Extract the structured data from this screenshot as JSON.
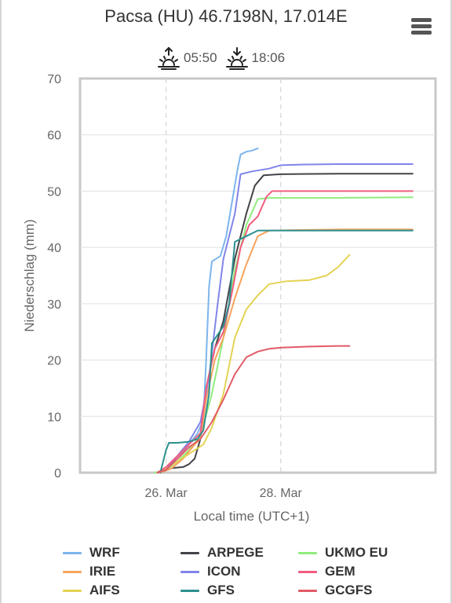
{
  "title": "Pacsa (HU) 46.7198N, 17.014E",
  "menu_icon": "hamburger-menu-icon",
  "sun": {
    "sunrise": "05:50",
    "sunset": "18:06",
    "sunrise_icon": "sunrise-icon",
    "sunset_icon": "sunset-icon"
  },
  "chart_data": {
    "type": "line",
    "xlabel": "Local time (UTC+1)",
    "ylabel": "Niederschlag (mm)",
    "ylim": [
      0,
      70
    ],
    "yticks": [
      0,
      10,
      20,
      30,
      40,
      50,
      60,
      70
    ],
    "xlim": [
      24.5,
      30.7
    ],
    "xticks": [
      {
        "x": 26,
        "label": "26. Mar"
      },
      {
        "x": 28,
        "label": "28. Mar"
      }
    ],
    "grid": true,
    "legend_position": "bottom",
    "series": [
      {
        "name": "WRF",
        "color": "#7cb5ec",
        "points": [
          [
            25.9,
            0
          ],
          [
            26.0,
            0.8
          ],
          [
            26.2,
            2.5
          ],
          [
            26.4,
            5
          ],
          [
            26.55,
            7
          ],
          [
            26.65,
            9.5
          ],
          [
            26.7,
            20
          ],
          [
            26.75,
            33
          ],
          [
            26.8,
            37.5
          ],
          [
            26.95,
            38.5
          ],
          [
            27.05,
            42
          ],
          [
            27.15,
            48
          ],
          [
            27.25,
            54
          ],
          [
            27.3,
            56.5
          ],
          [
            27.4,
            57
          ],
          [
            27.5,
            57.2
          ],
          [
            27.6,
            57.6
          ]
        ]
      },
      {
        "name": "ARPEGE",
        "color": "#434348",
        "points": [
          [
            25.9,
            0
          ],
          [
            26.1,
            0.8
          ],
          [
            26.3,
            1
          ],
          [
            26.4,
            1.5
          ],
          [
            26.5,
            2.5
          ],
          [
            26.6,
            6
          ],
          [
            26.7,
            15
          ],
          [
            26.85,
            22
          ],
          [
            27.0,
            27
          ],
          [
            27.2,
            38
          ],
          [
            27.4,
            46
          ],
          [
            27.55,
            51
          ],
          [
            27.7,
            52.8
          ],
          [
            28.0,
            53
          ],
          [
            29.0,
            53.1
          ],
          [
            30.3,
            53.1
          ]
        ]
      },
      {
        "name": "UKMO EU",
        "color": "#90ed7d",
        "points": [
          [
            25.8,
            0
          ],
          [
            26.0,
            0.5
          ],
          [
            26.2,
            2
          ],
          [
            26.4,
            4
          ],
          [
            26.6,
            6.5
          ],
          [
            26.8,
            14
          ],
          [
            27.0,
            24
          ],
          [
            27.2,
            36
          ],
          [
            27.4,
            44
          ],
          [
            27.6,
            48.6
          ],
          [
            27.8,
            48.8
          ],
          [
            29.0,
            48.8
          ],
          [
            30.3,
            48.9
          ]
        ]
      },
      {
        "name": "IRIE",
        "color": "#f7a35c",
        "points": [
          [
            25.9,
            0
          ],
          [
            26.1,
            0.8
          ],
          [
            26.3,
            2.5
          ],
          [
            26.5,
            5
          ],
          [
            26.6,
            6
          ],
          [
            26.7,
            13
          ],
          [
            26.85,
            20
          ],
          [
            27.0,
            24
          ],
          [
            27.2,
            31
          ],
          [
            27.4,
            37
          ],
          [
            27.6,
            42
          ],
          [
            27.8,
            43
          ],
          [
            29.0,
            43.2
          ],
          [
            30.3,
            43.2
          ]
        ]
      },
      {
        "name": "ICON",
        "color": "#8085e9",
        "points": [
          [
            26.0,
            0.5
          ],
          [
            26.2,
            3
          ],
          [
            26.4,
            5.5
          ],
          [
            26.6,
            9
          ],
          [
            26.75,
            17
          ],
          [
            26.9,
            30
          ],
          [
            27.0,
            38
          ],
          [
            27.1,
            42
          ],
          [
            27.2,
            46
          ],
          [
            27.3,
            53
          ],
          [
            27.5,
            53.5
          ],
          [
            27.8,
            54
          ],
          [
            28.0,
            54.6
          ],
          [
            28.3,
            54.7
          ],
          [
            29.0,
            54.8
          ],
          [
            30.3,
            54.8
          ]
        ]
      },
      {
        "name": "GEM",
        "color": "#f15c80",
        "points": [
          [
            25.85,
            0
          ],
          [
            26.0,
            1
          ],
          [
            26.2,
            3
          ],
          [
            26.4,
            5
          ],
          [
            26.6,
            7
          ],
          [
            26.7,
            15
          ],
          [
            26.85,
            22
          ],
          [
            27.0,
            25
          ],
          [
            27.15,
            32
          ],
          [
            27.3,
            40
          ],
          [
            27.45,
            44
          ],
          [
            27.6,
            45.5
          ],
          [
            27.75,
            49
          ],
          [
            27.85,
            50
          ],
          [
            28.3,
            50
          ],
          [
            30.3,
            50
          ]
        ]
      },
      {
        "name": "AIFS",
        "color": "#e4d354",
        "points": [
          [
            25.9,
            0
          ],
          [
            26.2,
            2
          ],
          [
            26.5,
            4
          ],
          [
            26.65,
            5
          ],
          [
            26.8,
            8
          ],
          [
            27.0,
            14
          ],
          [
            27.2,
            24
          ],
          [
            27.4,
            29
          ],
          [
            27.6,
            31.5
          ],
          [
            27.8,
            33.5
          ],
          [
            28.1,
            34
          ],
          [
            28.5,
            34.2
          ],
          [
            28.8,
            35
          ],
          [
            29.0,
            36.5
          ],
          [
            29.2,
            38.7
          ]
        ]
      },
      {
        "name": "GFS",
        "color": "#2b908f",
        "points": [
          [
            25.9,
            0
          ],
          [
            26.0,
            4
          ],
          [
            26.05,
            5.3
          ],
          [
            26.2,
            5.3
          ],
          [
            26.4,
            5.5
          ],
          [
            26.55,
            6
          ],
          [
            26.65,
            7.5
          ],
          [
            26.75,
            14
          ],
          [
            26.8,
            23
          ],
          [
            26.9,
            24.5
          ],
          [
            27.0,
            26
          ],
          [
            27.1,
            30
          ],
          [
            27.2,
            41
          ],
          [
            27.3,
            41.5
          ],
          [
            27.4,
            42
          ],
          [
            27.6,
            43
          ],
          [
            28.0,
            43
          ],
          [
            30.3,
            43
          ]
        ]
      },
      {
        "name": "GCGFS",
        "color": "#e15a66",
        "points": [
          [
            25.85,
            0
          ],
          [
            26.0,
            0.5
          ],
          [
            26.2,
            2.5
          ],
          [
            26.4,
            4.5
          ],
          [
            26.6,
            6
          ],
          [
            26.8,
            9
          ],
          [
            27.0,
            13
          ],
          [
            27.2,
            17.5
          ],
          [
            27.4,
            20.5
          ],
          [
            27.6,
            21.5
          ],
          [
            27.8,
            22
          ],
          [
            28.0,
            22.2
          ],
          [
            28.5,
            22.4
          ],
          [
            29.0,
            22.5
          ],
          [
            29.2,
            22.5
          ]
        ]
      }
    ]
  }
}
